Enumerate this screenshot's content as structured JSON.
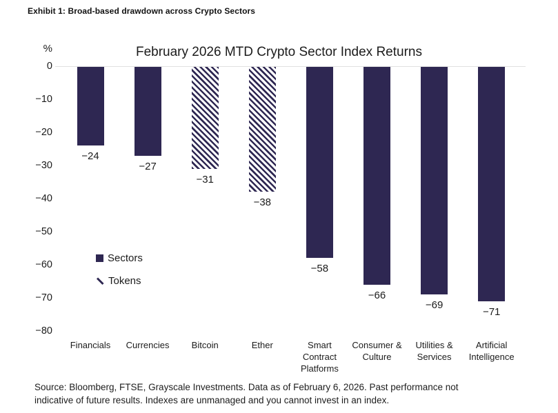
{
  "page": {
    "exhibit_title": "Exhibit 1: Broad-based drawdown across Crypto Sectors",
    "source_line1": "Source: Bloomberg, FTSE, Grayscale Investments. Data as of February 6, 2026. Past performance not",
    "source_line2": "indicative of future results. Indexes are unmanaged and you cannot invest in an index."
  },
  "chart_data": {
    "type": "bar",
    "title": "February 2026 MTD Crypto Sector Index Returns",
    "unit_label": "%",
    "orientation": "vertical-negative",
    "categories": [
      "Financials",
      "Currencies",
      "Bitcoin",
      "Ether",
      "Smart Contract Platforms",
      "Consumer & Culture",
      "Utilities & Services",
      "Artificial Intelligence"
    ],
    "category_lines": [
      [
        "Financials"
      ],
      [
        "Currencies"
      ],
      [
        "Bitcoin"
      ],
      [
        "Ether"
      ],
      [
        "Smart",
        "Contract",
        "Platforms"
      ],
      [
        "Consumer &",
        "Culture"
      ],
      [
        "Utilities &",
        "Services"
      ],
      [
        "Artificial",
        "Intelligence"
      ]
    ],
    "values": [
      -24,
      -27,
      -31,
      -38,
      -58,
      -66,
      -69,
      -71
    ],
    "value_labels": [
      "−24",
      "−27",
      "−31",
      "−38",
      "−58",
      "−66",
      "−69",
      "−71"
    ],
    "bar_styles": [
      "solid",
      "solid",
      "hatched",
      "hatched",
      "solid",
      "solid",
      "solid",
      "solid"
    ],
    "yticks": [
      0,
      -10,
      -20,
      -30,
      -40,
      -50,
      -60,
      -70,
      -80
    ],
    "ytick_labels": [
      "0",
      "−10",
      "−20",
      "−30",
      "−40",
      "−50",
      "−60",
      "−70",
      "−80"
    ],
    "ylim": [
      0,
      -80
    ],
    "grid": "zero-line-only",
    "legend_position": "mid-left",
    "legend": [
      {
        "label": "Sectors",
        "style": "solid"
      },
      {
        "label": "Tokens",
        "style": "hatched"
      }
    ],
    "colors": {
      "bar": "#2e2752",
      "gridline": "#e0e0e0",
      "text": "#1b1b1b",
      "background": "#ffffff"
    }
  }
}
